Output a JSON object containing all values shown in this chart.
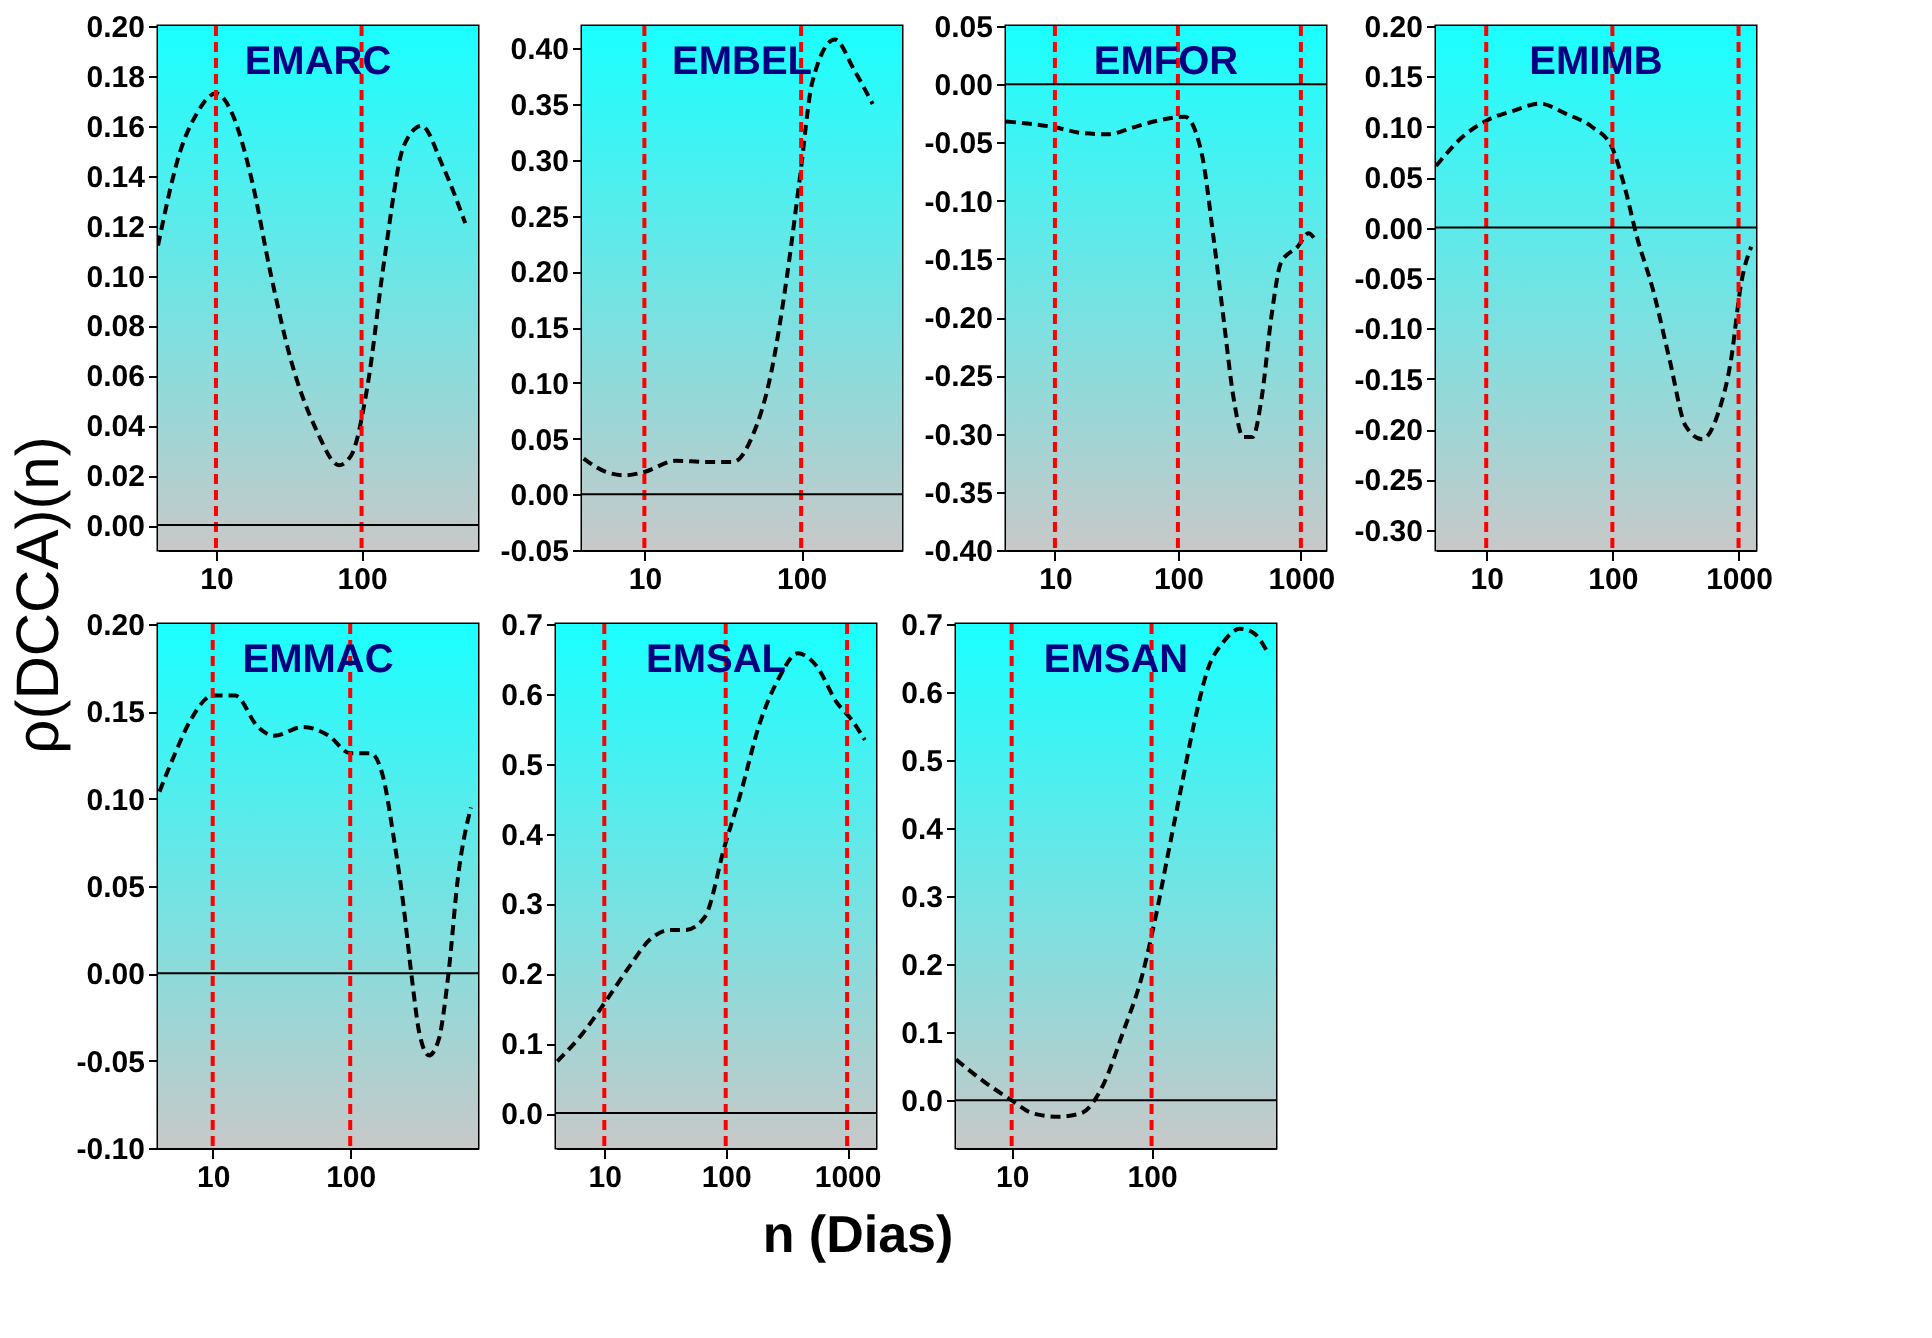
{
  "chart_data": [
    {
      "type": "line",
      "title": "EMARC",
      "ylabel": "ρ(DCCA)(n)",
      "xlabel": "n (Dias)",
      "log": "x",
      "xlim": [
        4,
        630
      ],
      "xticks": [
        10,
        100
      ],
      "ylim": [
        -0.01,
        0.2
      ],
      "yticks": [
        {
          "value": 0,
          "label": "0.00"
        },
        {
          "value": 0.02,
          "label": "0.02"
        },
        {
          "value": 0.04,
          "label": "0.04"
        },
        {
          "value": 0.06,
          "label": "0.06"
        },
        {
          "value": 0.08,
          "label": "0.08"
        },
        {
          "value": 0.1,
          "label": "0.10"
        },
        {
          "value": 0.12,
          "label": "0.12"
        },
        {
          "value": 0.14,
          "label": "0.14"
        },
        {
          "value": 0.16,
          "label": "0.16"
        },
        {
          "value": 0.18,
          "label": "0.18"
        },
        {
          "value": 0.2,
          "label": "0.20"
        }
      ],
      "x": [
        4,
        5.7,
        7.4,
        10,
        12.9,
        17.5,
        23.9,
        32.4,
        49,
        70,
        85,
        110,
        143,
        195,
        258,
        360,
        515
      ],
      "series": [
        {
          "color": "#000000",
          "line_style": "dashed",
          "values": [
            0.112,
            0.15,
            0.165,
            0.173,
            0.165,
            0.139,
            0.1,
            0.067,
            0.038,
            0.024,
            0.028,
            0.056,
            0.106,
            0.152,
            0.16,
            0.144,
            0.121
          ]
        }
      ],
      "ref_lines": [
        {
          "axis": "x",
          "value": 10,
          "color": "#ff0000",
          "line_style": "dashed"
        },
        {
          "axis": "x",
          "value": 100,
          "color": "#ff0000",
          "line_style": "dashed"
        },
        {
          "axis": "y",
          "value": 0,
          "color": "#000000",
          "line_style": "solid"
        }
      ]
    },
    {
      "type": "line",
      "title": "EMBEL",
      "log": "x",
      "xlim": [
        4,
        440
      ],
      "xticks": [
        10,
        100
      ],
      "ylim": [
        -0.05,
        0.42
      ],
      "yticks": [
        {
          "value": -0.05,
          "label": "-0.05"
        },
        {
          "value": 0,
          "label": "0.00"
        },
        {
          "value": 0.05,
          "label": "0.05"
        },
        {
          "value": 0.1,
          "label": "0.10"
        },
        {
          "value": 0.15,
          "label": "0.15"
        },
        {
          "value": 0.2,
          "label": "0.20"
        },
        {
          "value": 0.25,
          "label": "0.25"
        },
        {
          "value": 0.3,
          "label": "0.30"
        },
        {
          "value": 0.35,
          "label": "0.35"
        },
        {
          "value": 0.4,
          "label": "0.40"
        }
      ],
      "x": [
        4.1,
        5.7,
        7.6,
        10,
        15.9,
        25.4,
        36.9,
        48.8,
        64.6,
        81.5,
        98,
        118,
        164,
        217,
        286
      ],
      "series": [
        {
          "color": "#000000",
          "line_style": "dashed",
          "values": [
            0.032,
            0.02,
            0.017,
            0.02,
            0.03,
            0.029,
            0.029,
            0.052,
            0.11,
            0.197,
            0.283,
            0.37,
            0.408,
            0.381,
            0.35
          ]
        }
      ],
      "ref_lines": [
        {
          "axis": "x",
          "value": 10,
          "color": "#ff0000",
          "line_style": "dashed"
        },
        {
          "axis": "x",
          "value": 100,
          "color": "#ff0000",
          "line_style": "dashed"
        },
        {
          "axis": "y",
          "value": 0,
          "color": "#000000",
          "line_style": "solid"
        }
      ]
    },
    {
      "type": "line",
      "title": "EMFOR",
      "log": "x",
      "xlim": [
        4,
        1600
      ],
      "xticks": [
        10,
        100,
        1000
      ],
      "ylim": [
        -0.4,
        0.05
      ],
      "yticks": [
        {
          "value": -0.4,
          "label": "-0.40"
        },
        {
          "value": -0.35,
          "label": "-0.35"
        },
        {
          "value": -0.3,
          "label": "-0.30"
        },
        {
          "value": -0.25,
          "label": "-0.25"
        },
        {
          "value": -0.2,
          "label": "-0.20"
        },
        {
          "value": -0.15,
          "label": "-0.15"
        },
        {
          "value": -0.1,
          "label": "-0.10"
        },
        {
          "value": -0.05,
          "label": "-0.05"
        },
        {
          "value": 0,
          "label": "0.00"
        },
        {
          "value": 0.05,
          "label": "0.05"
        }
      ],
      "x": [
        4,
        10,
        16.7,
        27,
        43.5,
        70,
        114,
        155,
        197,
        236,
        283,
        340,
        405,
        480,
        580,
        690,
        950,
        1150,
        1300
      ],
      "series": [
        {
          "color": "#000000",
          "line_style": "dashed",
          "values": [
            -0.032,
            -0.037,
            -0.042,
            -0.043,
            -0.037,
            -0.031,
            -0.028,
            -0.058,
            -0.136,
            -0.203,
            -0.269,
            -0.303,
            -0.303,
            -0.269,
            -0.197,
            -0.153,
            -0.139,
            -0.128,
            -0.133
          ]
        }
      ],
      "ref_lines": [
        {
          "axis": "x",
          "value": 10,
          "color": "#ff0000",
          "line_style": "dashed"
        },
        {
          "axis": "x",
          "value": 100,
          "color": "#ff0000",
          "line_style": "dashed"
        },
        {
          "axis": "x",
          "value": 1000,
          "color": "#ff0000",
          "line_style": "dashed"
        },
        {
          "axis": "y",
          "value": 0,
          "color": "#000000",
          "line_style": "solid"
        }
      ]
    },
    {
      "type": "line",
      "title": "EMIMB",
      "log": "x",
      "xlim": [
        4,
        1375
      ],
      "xticks": [
        10,
        100,
        1000
      ],
      "ylim": [
        -0.32,
        0.2
      ],
      "yticks": [
        {
          "value": -0.3,
          "label": "-0.30"
        },
        {
          "value": -0.25,
          "label": "-0.25"
        },
        {
          "value": -0.2,
          "label": "-0.20"
        },
        {
          "value": -0.15,
          "label": "-0.15"
        },
        {
          "value": -0.1,
          "label": "-0.10"
        },
        {
          "value": -0.05,
          "label": "-0.05"
        },
        {
          "value": 0,
          "label": "0.00"
        },
        {
          "value": 0.05,
          "label": "0.05"
        },
        {
          "value": 0.1,
          "label": "0.10"
        },
        {
          "value": 0.15,
          "label": "0.15"
        },
        {
          "value": 0.2,
          "label": "0.20"
        }
      ],
      "x": [
        4,
        6.5,
        10,
        16.6,
        26.7,
        42.6,
        68.8,
        98,
        124,
        157,
        209,
        285,
        381,
        515,
        690,
        870,
        1050,
        1260
      ],
      "series": [
        {
          "color": "#000000",
          "line_style": "dashed",
          "values": [
            0.061,
            0.09,
            0.106,
            0.116,
            0.123,
            0.113,
            0.1,
            0.081,
            0.042,
            -0.01,
            -0.061,
            -0.132,
            -0.197,
            -0.21,
            -0.184,
            -0.132,
            -0.055,
            -0.019
          ]
        }
      ],
      "ref_lines": [
        {
          "axis": "x",
          "value": 10,
          "color": "#ff0000",
          "line_style": "dashed"
        },
        {
          "axis": "x",
          "value": 100,
          "color": "#ff0000",
          "line_style": "dashed"
        },
        {
          "axis": "x",
          "value": 1000,
          "color": "#ff0000",
          "line_style": "dashed"
        },
        {
          "axis": "y",
          "value": 0,
          "color": "#000000",
          "line_style": "solid"
        }
      ]
    },
    {
      "type": "line",
      "title": "EMMAC",
      "log": "x",
      "xlim": [
        4,
        850
      ],
      "xticks": [
        10,
        100
      ],
      "ylim": [
        -0.1,
        0.2
      ],
      "yticks": [
        {
          "value": -0.1,
          "label": "-0.10"
        },
        {
          "value": -0.05,
          "label": "-0.05"
        },
        {
          "value": 0,
          "label": "0.00"
        },
        {
          "value": 0.05,
          "label": "0.05"
        },
        {
          "value": 0.1,
          "label": "0.10"
        },
        {
          "value": 0.15,
          "label": "0.15"
        },
        {
          "value": 0.2,
          "label": "0.20"
        }
      ],
      "x": [
        4.1,
        5.2,
        6.9,
        10,
        14.6,
        21.3,
        27.9,
        45.4,
        70,
        100,
        141,
        174,
        205,
        243,
        279,
        318,
        374,
        440,
        517,
        608,
        755
      ],
      "series": [
        {
          "color": "#000000",
          "line_style": "dashed",
          "values": [
            0.104,
            0.124,
            0.145,
            0.159,
            0.159,
            0.141,
            0.136,
            0.141,
            0.136,
            0.126,
            0.126,
            0.112,
            0.08,
            0.04,
            -0.001,
            -0.034,
            -0.047,
            -0.038,
            -0.001,
            0.055,
            0.095
          ]
        }
      ],
      "ref_lines": [
        {
          "axis": "x",
          "value": 10,
          "color": "#ff0000",
          "line_style": "dashed"
        },
        {
          "axis": "x",
          "value": 100,
          "color": "#ff0000",
          "line_style": "dashed"
        },
        {
          "axis": "y",
          "value": 0,
          "color": "#000000",
          "line_style": "solid"
        }
      ]
    },
    {
      "type": "line",
      "title": "EMSAL",
      "log": "x",
      "xlim": [
        4,
        1730
      ],
      "xticks": [
        10,
        100,
        1000
      ],
      "ylim": [
        -0.05,
        0.7
      ],
      "yticks": [
        {
          "value": 0,
          "label": "0.0"
        },
        {
          "value": 0.1,
          "label": "0.1"
        },
        {
          "value": 0.2,
          "label": "0.2"
        },
        {
          "value": 0.3,
          "label": "0.3"
        },
        {
          "value": 0.4,
          "label": "0.4"
        },
        {
          "value": 0.5,
          "label": "0.5"
        },
        {
          "value": 0.6,
          "label": "0.6"
        },
        {
          "value": 0.7,
          "label": "0.7"
        }
      ],
      "x": [
        4.1,
        6.7,
        10,
        15.7,
        24,
        34.5,
        46.8,
        67.5,
        98,
        132,
        190,
        273,
        392,
        560,
        813,
        1100,
        1400
      ],
      "series": [
        {
          "color": "#000000",
          "line_style": "dashed",
          "values": [
            0.074,
            0.115,
            0.157,
            0.207,
            0.249,
            0.262,
            0.262,
            0.281,
            0.382,
            0.456,
            0.557,
            0.622,
            0.658,
            0.64,
            0.589,
            0.562,
            0.534
          ]
        }
      ],
      "ref_lines": [
        {
          "axis": "x",
          "value": 10,
          "color": "#ff0000",
          "line_style": "dashed"
        },
        {
          "axis": "x",
          "value": 100,
          "color": "#ff0000",
          "line_style": "dashed"
        },
        {
          "axis": "x",
          "value": 1000,
          "color": "#ff0000",
          "line_style": "dashed"
        },
        {
          "axis": "y",
          "value": 0,
          "color": "#000000",
          "line_style": "solid"
        }
      ]
    },
    {
      "type": "line",
      "title": "EMSAN",
      "log": "x",
      "xlim": [
        4,
        775
      ],
      "xticks": [
        10,
        100
      ],
      "ylim": [
        -0.07,
        0.7
      ],
      "yticks": [
        {
          "value": 0,
          "label": "0.0"
        },
        {
          "value": 0.1,
          "label": "0.1"
        },
        {
          "value": 0.2,
          "label": "0.2"
        },
        {
          "value": 0.3,
          "label": "0.3"
        },
        {
          "value": 0.4,
          "label": "0.4"
        },
        {
          "value": 0.5,
          "label": "0.5"
        },
        {
          "value": 0.6,
          "label": "0.6"
        },
        {
          "value": 0.7,
          "label": "0.7"
        }
      ],
      "x": [
        4,
        6.3,
        10,
        14.1,
        21.5,
        31.3,
        45.4,
        62.5,
        86,
        107,
        132,
        163,
        202,
        250,
        327,
        427,
        527,
        689
      ],
      "series": [
        {
          "color": "#000000",
          "line_style": "dashed",
          "values": [
            0.06,
            0.028,
            0.0,
            -0.019,
            -0.024,
            -0.019,
            0.024,
            0.1,
            0.185,
            0.27,
            0.365,
            0.46,
            0.555,
            0.631,
            0.674,
            0.693,
            0.688,
            0.655
          ]
        }
      ],
      "ref_lines": [
        {
          "axis": "x",
          "value": 10,
          "color": "#ff0000",
          "line_style": "dashed"
        },
        {
          "axis": "x",
          "value": 100,
          "color": "#ff0000",
          "line_style": "dashed"
        },
        {
          "axis": "y",
          "value": 0,
          "color": "#000000",
          "line_style": "solid"
        }
      ]
    }
  ]
}
